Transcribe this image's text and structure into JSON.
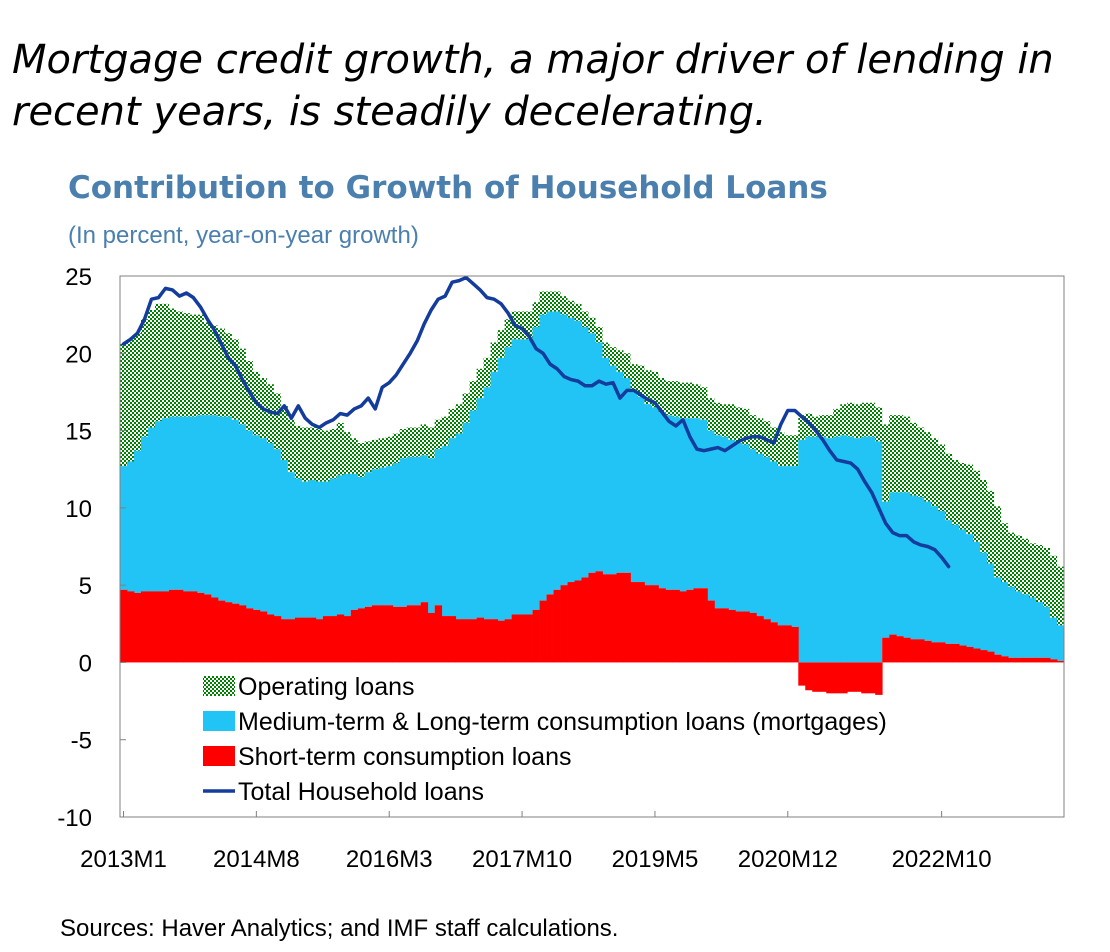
{
  "headline": "Mortgage credit growth, a major driver of lending in recent years, is steadily decelerating.",
  "source": "Sources: Haver Analytics; and IMF staff calculations.",
  "colors": {
    "operating_dots": "#008000",
    "medium_long": "#22c4f5",
    "short_term": "#ff0000",
    "total": "#133c9c",
    "title": "#4a7fae",
    "axis": "#808080"
  },
  "chart_data": {
    "type": "area",
    "stacked": true,
    "title": "Contribution to Growth of Household Loans",
    "subtitle": "(In percent, year-on-year growth)",
    "xlabel": "",
    "ylabel": "",
    "ylim": [
      -10,
      25
    ],
    "yticks": [
      25,
      20,
      15,
      10,
      5,
      0,
      -5,
      -10
    ],
    "start_month": "2013M1",
    "x_tick_labels": [
      "2013M1",
      "2014M8",
      "2016M3",
      "2017M10",
      "2019M5",
      "2020M12",
      "2022M10"
    ],
    "x_tick_index": [
      0,
      19,
      38,
      57,
      76,
      95,
      117
    ],
    "legend_position": "lower-left",
    "series": [
      {
        "name": "Short-term consumption loans",
        "kind": "bar",
        "legend": "Short-term consumption loans",
        "values": [
          4.7,
          4.6,
          4.5,
          4.6,
          4.6,
          4.6,
          4.6,
          4.7,
          4.7,
          4.6,
          4.6,
          4.5,
          4.4,
          4.2,
          4.0,
          3.9,
          3.8,
          3.7,
          3.5,
          3.4,
          3.3,
          3.1,
          3.0,
          2.8,
          2.8,
          2.9,
          2.9,
          2.9,
          2.8,
          3.0,
          3.0,
          3.1,
          3.0,
          3.4,
          3.5,
          3.6,
          3.7,
          3.7,
          3.7,
          3.6,
          3.6,
          3.7,
          3.7,
          3.9,
          3.2,
          3.7,
          3.0,
          3.0,
          2.8,
          2.8,
          2.8,
          2.9,
          2.8,
          2.8,
          2.7,
          2.8,
          3.1,
          3.1,
          3.1,
          3.4,
          4.0,
          4.4,
          4.7,
          5.0,
          5.2,
          5.3,
          5.5,
          5.8,
          5.9,
          5.7,
          5.7,
          5.8,
          5.8,
          5.2,
          5.2,
          5.0,
          5.0,
          4.8,
          4.7,
          4.7,
          4.6,
          4.7,
          4.8,
          4.8,
          4.0,
          3.5,
          3.5,
          3.4,
          3.3,
          3.3,
          3.2,
          3.0,
          2.8,
          2.6,
          2.4,
          2.4,
          2.3,
          -1.5,
          -1.8,
          -1.9,
          -1.9,
          -2.0,
          -2.0,
          -2.0,
          -1.9,
          -1.9,
          -2.0,
          -2.0,
          -2.1,
          1.6,
          1.8,
          1.7,
          1.6,
          1.5,
          1.5,
          1.4,
          1.3,
          1.3,
          1.2,
          1.2,
          1.1,
          1.0,
          0.9,
          0.8,
          0.7,
          0.5,
          0.4,
          0.3,
          0.3,
          0.3,
          0.3,
          0.3,
          0.3,
          0.2,
          0.1
        ]
      },
      {
        "name": "Medium-term & Long-term consumption loans (mortgages)",
        "kind": "area",
        "legend": "Medium-term & Long-term consumption loans (mortgages)",
        "values": [
          8.0,
          8.4,
          9.2,
          10.0,
          10.6,
          11.0,
          11.2,
          11.2,
          11.2,
          11.3,
          11.3,
          11.5,
          11.6,
          11.8,
          11.9,
          12.0,
          11.9,
          11.7,
          11.5,
          11.3,
          11.2,
          11.1,
          10.8,
          10.3,
          9.5,
          9.0,
          8.8,
          8.9,
          8.9,
          8.7,
          8.9,
          9.0,
          9.2,
          8.8,
          8.5,
          8.7,
          8.8,
          8.9,
          9.0,
          9.3,
          9.6,
          9.6,
          9.6,
          9.5,
          10.0,
          10.1,
          11.0,
          11.5,
          12.0,
          12.7,
          13.5,
          14.2,
          15.0,
          16.0,
          17.0,
          17.6,
          17.8,
          17.8,
          17.8,
          18.3,
          18.5,
          18.3,
          18.0,
          17.5,
          17.1,
          16.8,
          16.2,
          15.5,
          14.8,
          14.0,
          13.5,
          13.0,
          12.6,
          12.3,
          12.0,
          11.7,
          11.5,
          11.4,
          11.3,
          11.2,
          11.2,
          11.1,
          11.0,
          10.9,
          11.0,
          11.2,
          11.1,
          11.0,
          10.9,
          10.8,
          10.6,
          10.5,
          10.5,
          10.4,
          10.3,
          10.3,
          10.4,
          14.4,
          14.6,
          14.6,
          14.6,
          14.5,
          14.6,
          14.7,
          14.6,
          14.5,
          14.6,
          14.6,
          14.3,
          8.8,
          9.2,
          9.3,
          9.4,
          9.3,
          9.2,
          9.0,
          8.8,
          8.5,
          8.0,
          7.7,
          7.5,
          7.3,
          6.9,
          6.3,
          5.7,
          5.0,
          4.8,
          4.6,
          4.3,
          4.1,
          3.9,
          3.6,
          3.3,
          2.7,
          2.3
        ]
      },
      {
        "name": "Operating loans",
        "kind": "area",
        "legend": "Operating loans",
        "values": [
          7.9,
          7.9,
          7.6,
          7.6,
          7.6,
          7.6,
          7.4,
          7.0,
          6.8,
          6.7,
          6.6,
          6.5,
          6.0,
          5.8,
          5.7,
          5.4,
          5.2,
          4.9,
          4.5,
          4.1,
          3.9,
          3.8,
          3.6,
          3.5,
          3.4,
          3.4,
          3.5,
          3.4,
          3.4,
          3.3,
          3.2,
          3.4,
          2.7,
          2.3,
          2.2,
          2.0,
          1.9,
          1.9,
          1.9,
          1.9,
          1.9,
          1.9,
          1.9,
          2.0,
          2.0,
          1.9,
          1.9,
          1.9,
          1.9,
          1.9,
          1.9,
          1.9,
          1.9,
          1.9,
          1.8,
          1.8,
          1.8,
          1.8,
          1.8,
          1.6,
          1.5,
          1.3,
          1.3,
          1.2,
          1.1,
          1.1,
          1.0,
          1.0,
          1.0,
          1.0,
          1.2,
          1.4,
          1.6,
          1.8,
          2.0,
          2.2,
          2.3,
          2.2,
          2.2,
          2.3,
          2.3,
          2.3,
          2.2,
          2.1,
          2.1,
          2.1,
          2.1,
          2.3,
          2.3,
          2.3,
          2.2,
          2.3,
          2.3,
          2.2,
          2.2,
          2.0,
          2.0,
          1.6,
          1.5,
          1.3,
          1.4,
          1.5,
          1.8,
          2.0,
          2.2,
          2.2,
          2.2,
          2.2,
          2.2,
          5.0,
          5.0,
          5.0,
          4.9,
          4.7,
          4.5,
          4.5,
          4.4,
          4.3,
          4.3,
          4.2,
          4.3,
          4.5,
          4.6,
          4.7,
          4.7,
          4.6,
          3.8,
          3.5,
          3.6,
          3.6,
          3.5,
          3.7,
          3.8,
          4.0,
          3.8
        ]
      },
      {
        "name": "Total Household loans",
        "kind": "line",
        "legend": "Total Household loans",
        "values": [
          20.6,
          20.9,
          21.3,
          22.2,
          23.5,
          23.6,
          24.2,
          24.1,
          23.7,
          23.9,
          23.6,
          23.0,
          22.2,
          21.5,
          20.6,
          19.7,
          19.2,
          18.3,
          17.5,
          16.8,
          16.4,
          16.2,
          16.1,
          16.6,
          15.8,
          16.6,
          15.8,
          15.4,
          15.2,
          15.5,
          15.7,
          16.1,
          16.0,
          16.4,
          16.6,
          17.1,
          16.4,
          17.8,
          18.1,
          18.6,
          19.3,
          20.0,
          20.8,
          21.9,
          22.8,
          23.5,
          23.7,
          24.6,
          24.7,
          24.9,
          24.5,
          24.1,
          23.6,
          23.5,
          23.2,
          22.6,
          21.8,
          21.6,
          21.1,
          20.3,
          20.0,
          19.3,
          19.0,
          18.5,
          18.3,
          18.2,
          17.9,
          17.9,
          18.2,
          18.0,
          18.1,
          17.1,
          17.6,
          17.6,
          17.3,
          17.0,
          16.8,
          16.2,
          15.6,
          15.3,
          15.7,
          14.6,
          13.8,
          13.7,
          13.8,
          13.9,
          13.7,
          14.0,
          14.3,
          14.5,
          14.6,
          14.6,
          14.4,
          14.2,
          15.4,
          16.3,
          16.3,
          15.9,
          15.5,
          15.0,
          14.4,
          13.7,
          13.1,
          13.0,
          12.9,
          12.5,
          11.7,
          11.0,
          10.0,
          9.0,
          8.4,
          8.2,
          8.2,
          7.8,
          7.6,
          7.5,
          7.3,
          6.8,
          6.2
        ]
      }
    ]
  }
}
